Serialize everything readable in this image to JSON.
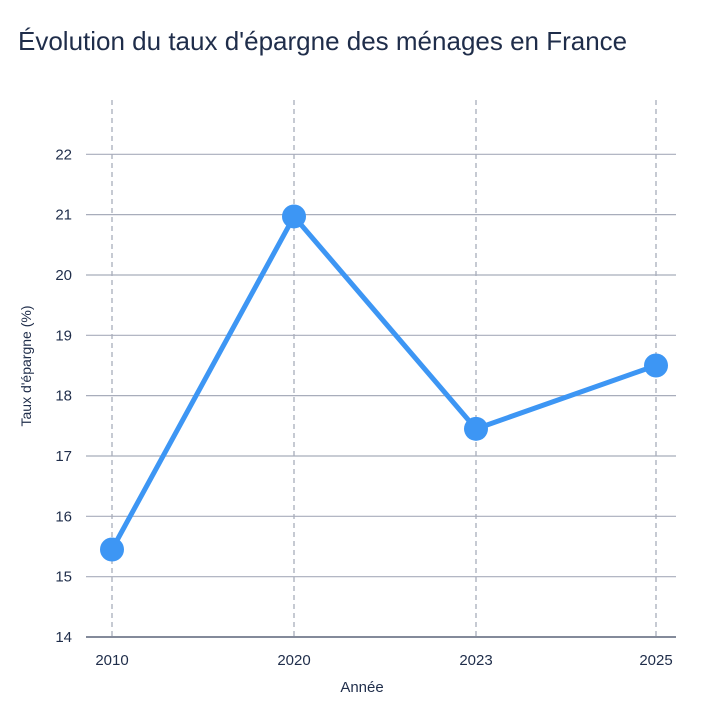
{
  "chart_data": {
    "type": "line",
    "title": "Évolution du taux d'épargne des ménages en France",
    "xlabel": "Année",
    "ylabel": "Taux d'épargne (%)",
    "categories": [
      "2010",
      "2020",
      "2023",
      "2025"
    ],
    "series": [
      {
        "values": [
          15.45,
          20.97,
          17.45,
          18.5
        ]
      }
    ],
    "ylim": [
      14,
      22.9
    ],
    "yticks": [
      14,
      15,
      16,
      17,
      18,
      19,
      20,
      21,
      22
    ],
    "grid": true,
    "line_color": "#3d96f4",
    "grid_color": "#a8adbb",
    "axis_color": "#5a6378",
    "legend": "none"
  }
}
